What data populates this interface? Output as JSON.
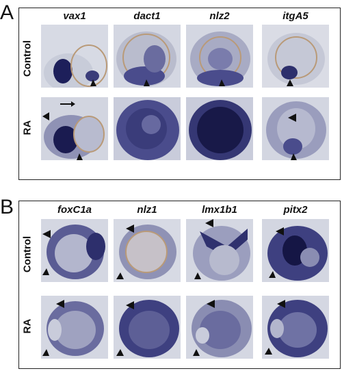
{
  "panels": [
    {
      "letter": "A",
      "genes": [
        "vax1",
        "dact1",
        "nlz2",
        "itgA5"
      ],
      "rows": [
        "Control",
        "RA"
      ]
    },
    {
      "letter": "B",
      "genes": [
        "foxC1a",
        "nlz1",
        "lmx1b1",
        "pitx2"
      ],
      "rows": [
        "Control",
        "RA"
      ]
    }
  ],
  "palette": {
    "background_tissue": "#d6d9e3",
    "stain_dark": "#1c1d55",
    "stain_mid": "#4a4c8c",
    "lens_tan": "#b99a78",
    "frame": "#222222"
  }
}
